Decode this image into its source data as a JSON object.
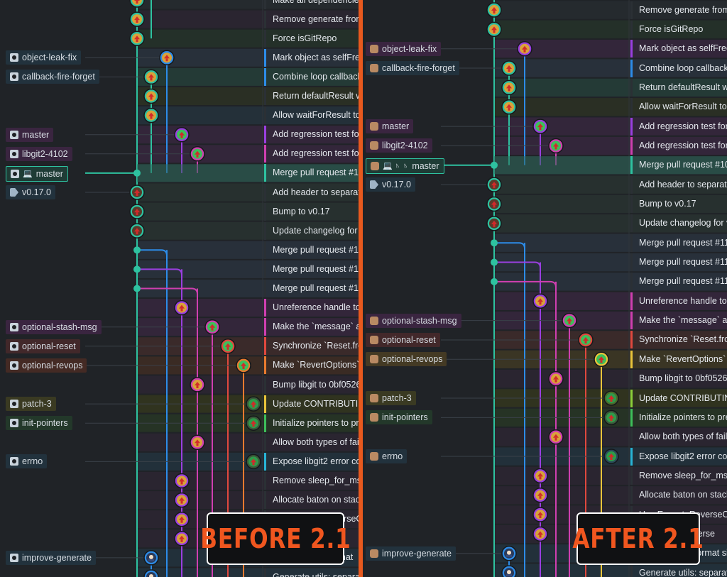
{
  "colors": {
    "accent": "#e8591e",
    "teal": "#2ec2a0",
    "blue": "#2d8ce8",
    "pink": "#cf3fb0",
    "purple": "#9a3fe0",
    "green": "#3dbf5a",
    "red": "#e0483e",
    "orange": "#e87a2e",
    "yellow": "#e8c43a",
    "lime": "#8bcf3a",
    "cyan": "#28b4d6"
  },
  "before": {
    "label": "BEFORE 2.1",
    "refs": [
      {
        "text": "object-leak-fix",
        "icon": "github-icon",
        "row": 3,
        "bg": "#22323d"
      },
      {
        "text": "callback-fire-forget",
        "icon": "github-icon",
        "row": 4,
        "bg": "#22323d"
      },
      {
        "text": "master",
        "icon": "github-icon",
        "row": 7,
        "bg": "#3a2540"
      },
      {
        "text": "libgit2-4102",
        "icon": "github-icon",
        "row": 8,
        "bg": "#3a2540"
      },
      {
        "text": "master",
        "icon": "github-icon",
        "pc": "💻",
        "row": 9,
        "bg": "#1f3c36",
        "hl": true
      },
      {
        "text": "v0.17.0",
        "icon": "tag-icon",
        "row": 10,
        "bg": "#22323d"
      },
      {
        "text": "optional-stash-msg",
        "icon": "github-icon",
        "row": 17,
        "bg": "#3a2540"
      },
      {
        "text": "optional-reset",
        "icon": "github-icon",
        "row": 18,
        "bg": "#42282a"
      },
      {
        "text": "optional-revops",
        "icon": "github-icon",
        "row": 19,
        "bg": "#442a24"
      },
      {
        "text": "patch-3",
        "icon": "github-icon",
        "row": 21,
        "bg": "#3a3a22"
      },
      {
        "text": "init-pointers",
        "icon": "github-icon",
        "row": 22,
        "bg": "#23382a"
      },
      {
        "text": "errno",
        "icon": "github-icon",
        "row": 24,
        "bg": "#22323d"
      },
      {
        "text": "improve-generate",
        "icon": "github-icon",
        "row": 29,
        "bg": "#22323d"
      }
    ],
    "messages": [
      "Make all dependencies",
      "Remove generate from",
      "Force isGitRepo",
      "Mark object as selfFree",
      "Combine loop callback",
      "Return defaultResult wh",
      "Allow waitForResult to",
      "Add regression test for",
      "Add regression test for",
      "Merge pull request #1",
      "Add header to separat",
      "Bump to v0.17",
      "Update changelog for v",
      "Merge pull request #11",
      "Merge pull request #11",
      "Merge pull request #11",
      "Unreference handle to",
      "Make the `message` a",
      "Synchronize `Reset.fro",
      "Make `RevertOptions`",
      "Bump libgit to 0bf0526",
      "Update CONTRIBUTING",
      "Initialize pointers to pr",
      "Allow both types of fail",
      "Expose libgit2 error co",
      "Remove sleep_for_ms",
      "Allocate baton on stack",
      "Use ExecuteReverseCal",
      "Support for revers",
      "Remove path format",
      "Generate utils: separat"
    ]
  },
  "after": {
    "label": "AFTER 2.1",
    "refs": [
      {
        "text": "object-leak-fix",
        "icon": "avatar-icon",
        "row": 2,
        "bg": "#3a2540"
      },
      {
        "text": "callback-fire-forget",
        "icon": "avatar-icon",
        "row": 3,
        "bg": "#22323d"
      },
      {
        "text": "master",
        "icon": "avatar-icon",
        "row": 6,
        "bg": "#3a2540"
      },
      {
        "text": "libgit2-4102",
        "icon": "avatar-icon",
        "row": 7,
        "bg": "#3a2540"
      },
      {
        "text": "master",
        "icon": "avatar-icon",
        "pc": "💻 ♄ ♄",
        "row": 8,
        "bg": "#1f3c36",
        "hl": true
      },
      {
        "text": "v0.17.0",
        "icon": "tag-icon",
        "row": 9,
        "bg": "#22323d"
      },
      {
        "text": "optional-stash-msg",
        "icon": "avatar-icon",
        "row": 16,
        "bg": "#3a2540"
      },
      {
        "text": "optional-reset",
        "icon": "avatar-icon",
        "row": 17,
        "bg": "#42282a"
      },
      {
        "text": "optional-revops",
        "icon": "avatar-icon",
        "row": 18,
        "bg": "#443a24"
      },
      {
        "text": "patch-3",
        "icon": "avatar-icon",
        "row": 20,
        "bg": "#3a3a22"
      },
      {
        "text": "init-pointers",
        "icon": "avatar-icon",
        "row": 21,
        "bg": "#23382a"
      },
      {
        "text": "errno",
        "icon": "avatar-icon",
        "row": 23,
        "bg": "#22323d"
      },
      {
        "text": "improve-generate",
        "icon": "avatar-icon",
        "row": 28,
        "bg": "#22323d"
      }
    ],
    "messages": [
      "Remove generate from",
      "Force isGitRepo",
      "Mark object as selfFree",
      "Combine loop callbacks",
      "Return defaultResult w",
      "Allow waitForResult to b",
      "Add regression test for",
      "Add regression test for",
      "Merge pull request #10",
      "Add header to separate",
      "Bump to v0.17",
      "Update changelog for v",
      "Merge pull request #11",
      "Merge pull request #11",
      "Merge pull request #11",
      "Unreference handle to",
      "Make the `message` ar",
      "Synchronize `Reset.fro",
      "Make `RevertOptions`",
      "Bump libgit to 0bf0526",
      "Update CONTRIBUTING",
      "Initialize pointers to pre",
      "Allow both types of failu",
      "Expose libgit2 error cod",
      "Remove sleep_for_ms",
      "Allocate baton on stack",
      "Use ExecuteReverseCal",
      "Support for reverse",
      "Remove path format si",
      "Generate utils: separat"
    ]
  }
}
